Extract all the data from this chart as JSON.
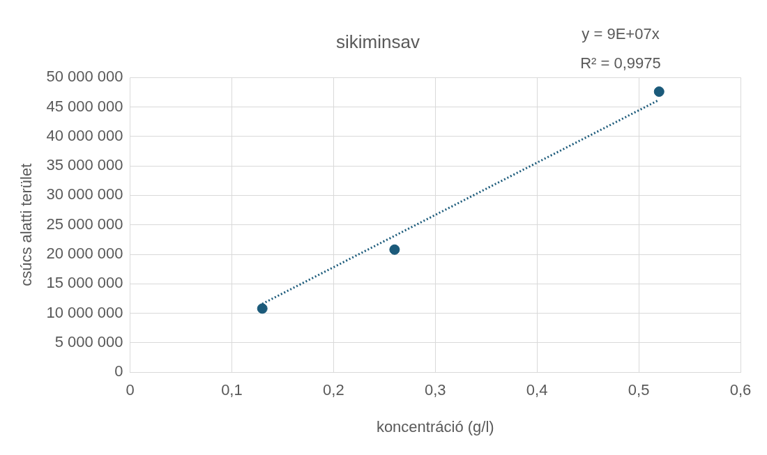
{
  "chart_data": {
    "type": "scatter",
    "title": "sikiminsav",
    "xlabel": "koncentráció (g/l)",
    "ylabel": "csúcs alatti terület",
    "annotations": [
      "y = 9E+07x",
      "R² = 0,9975"
    ],
    "series": [
      {
        "type": "scatter",
        "color": "#1b5a7a",
        "x": [
          0.13,
          0.26,
          0.52
        ],
        "values": [
          10800000,
          20800000,
          47600000
        ],
        "marker": "circle"
      },
      {
        "type": "line",
        "color": "#1b5a7a",
        "x": [
          0.13,
          0.52
        ],
        "values": [
          11600000,
          46200000
        ],
        "line_style": "dotted",
        "marker": "none"
      }
    ],
    "xlim": [
      0,
      0.6
    ],
    "xticks": [
      {
        "value": 0,
        "label": "0"
      },
      {
        "value": 0.1,
        "label": "0,1"
      },
      {
        "value": 0.2,
        "label": "0,2"
      },
      {
        "value": 0.3,
        "label": "0,3"
      },
      {
        "value": 0.4,
        "label": "0,4"
      },
      {
        "value": 0.5,
        "label": "0,5"
      },
      {
        "value": 0.6,
        "label": "0,6"
      }
    ],
    "ylim": [
      0,
      50000000
    ],
    "yticks": [
      {
        "value": 0,
        "label": "0"
      },
      {
        "value": 5000000,
        "label": "5 000 000"
      },
      {
        "value": 10000000,
        "label": "10 000 000"
      },
      {
        "value": 15000000,
        "label": "15 000 000"
      },
      {
        "value": 20000000,
        "label": "20 000 000"
      },
      {
        "value": 25000000,
        "label": "25 000 000"
      },
      {
        "value": 30000000,
        "label": "30 000 000"
      },
      {
        "value": 35000000,
        "label": "35 000 000"
      },
      {
        "value": 40000000,
        "label": "40 000 000"
      },
      {
        "value": 45000000,
        "label": "45 000 000"
      },
      {
        "value": 50000000,
        "label": "50 000 000"
      }
    ],
    "grid": true,
    "legend": false
  }
}
